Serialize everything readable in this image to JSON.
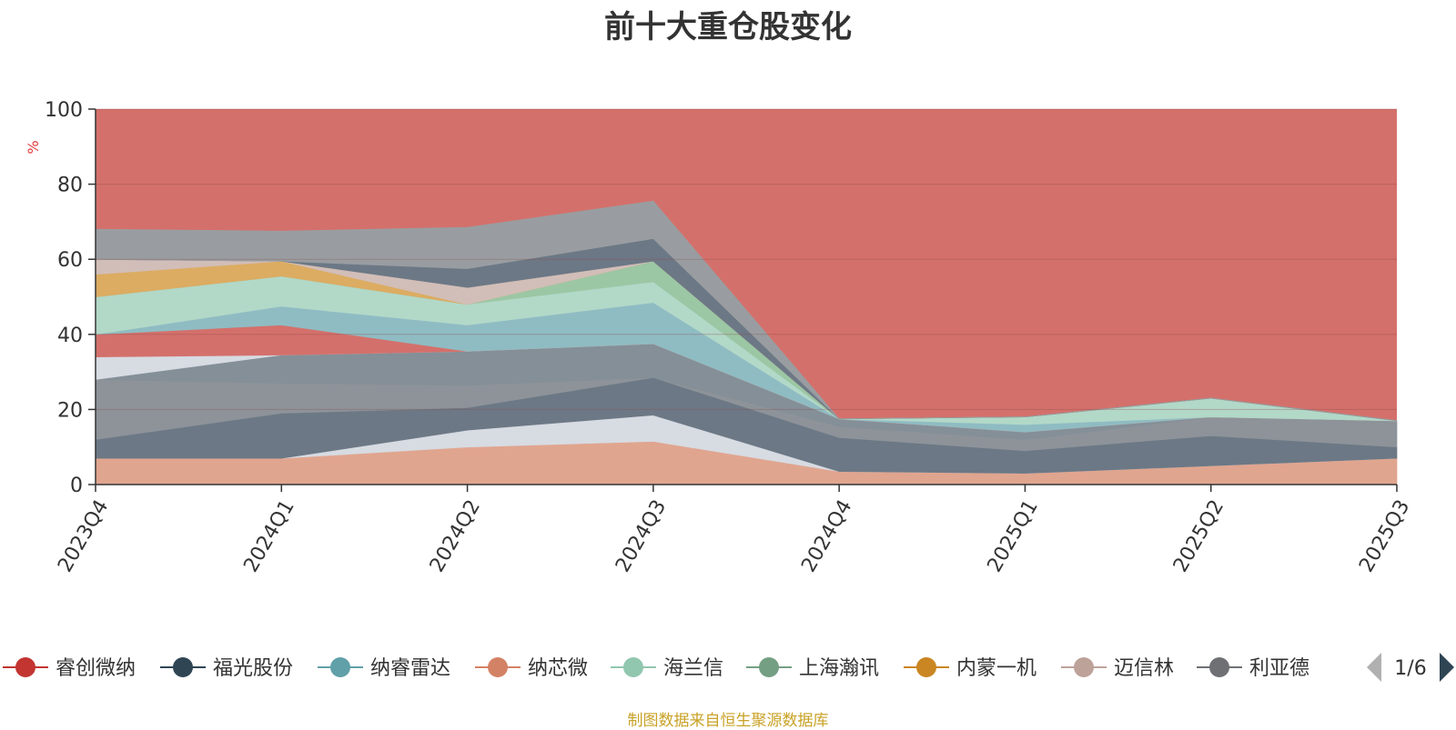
{
  "header": {
    "title": "前十大重仓股变化"
  },
  "footer": {
    "note": "制图数据来自恒生聚源数据库"
  },
  "legend": {
    "page_indicator": "1/6"
  },
  "chart_data": {
    "type": "area",
    "title": "前十大重仓股变化",
    "ylabel": "%",
    "ylim": [
      0,
      100
    ],
    "yticks": [
      0,
      20,
      40,
      60,
      80,
      100
    ],
    "grid": true,
    "legend_position": "bottom",
    "categories": [
      "2023Q4",
      "2024Q1",
      "2024Q2",
      "2024Q3",
      "2024Q4",
      "2025Q1",
      "2025Q2",
      "2025Q3"
    ],
    "background_series": {
      "name": "睿创微纳",
      "color": "#d4706b",
      "values": [
        100,
        100,
        100,
        100,
        100,
        100,
        100,
        100
      ]
    },
    "layers": [
      {
        "name": "纳芯微",
        "color": "#e0a58f",
        "values": [
          7,
          7,
          10,
          11.5,
          3.5,
          3,
          5,
          7
        ]
      },
      {
        "name": "迈信林",
        "color": "#d7dbe2",
        "values": [
          0,
          0,
          4.5,
          7,
          0,
          0,
          0,
          0
        ]
      },
      {
        "name": "福光股份",
        "color": "#6c7885",
        "values": [
          5,
          12,
          6,
          10,
          9,
          6,
          8,
          3
        ]
      },
      {
        "name": "利亚德",
        "color": "#8d9399",
        "values": [
          16,
          8,
          6,
          0,
          3,
          3,
          5,
          7
        ]
      },
      {
        "name": "纳睿雷达",
        "color": "#848f97",
        "values": [
          0,
          7.5,
          9,
          9,
          2,
          2,
          0,
          0
        ]
      },
      {
        "name": "迈信林",
        "color": "#d7dbe2",
        "values": [
          6,
          0,
          0,
          0,
          0,
          0,
          0,
          0
        ]
      },
      {
        "name": "睿创微纳",
        "color": "#d4706b",
        "values": [
          6,
          8,
          0,
          0,
          0,
          0,
          0,
          0
        ]
      },
      {
        "name": "纳睿雷达",
        "color": "#8fbcc3",
        "values": [
          0,
          5,
          7,
          11,
          0,
          2,
          0,
          0
        ]
      },
      {
        "name": "海兰信",
        "color": "#b2d8c8",
        "values": [
          10,
          8,
          5.5,
          5.5,
          0,
          2,
          5,
          0
        ]
      },
      {
        "name": "上海瀚讯",
        "color": "#9cc7a4",
        "values": [
          0,
          0,
          0,
          5.5,
          0,
          0,
          0,
          0
        ]
      },
      {
        "name": "内蒙一机",
        "color": "#dcac62",
        "values": [
          6,
          4,
          0,
          0,
          0,
          0,
          0,
          0
        ]
      },
      {
        "name": "迈信林",
        "color": "#d2beb8",
        "values": [
          4,
          0,
          4.5,
          0,
          0,
          0,
          0,
          0
        ]
      },
      {
        "name": "福光股份",
        "color": "#6c7885",
        "values": [
          0,
          0,
          5,
          6,
          0,
          0,
          0,
          0
        ]
      },
      {
        "name": "利亚德",
        "color": "#999da1",
        "values": [
          8,
          8,
          11,
          10,
          0,
          0,
          0,
          0
        ]
      }
    ],
    "series": [
      {
        "name": "睿创微纳",
        "color": "#c23531"
      },
      {
        "name": "福光股份",
        "color": "#2f4554"
      },
      {
        "name": "纳睿雷达",
        "color": "#61a0a8"
      },
      {
        "name": "纳芯微",
        "color": "#d48265"
      },
      {
        "name": "海兰信",
        "color": "#91c7ae"
      },
      {
        "name": "上海瀚讯",
        "color": "#749f83"
      },
      {
        "name": "内蒙一机",
        "color": "#ca8622"
      },
      {
        "name": "迈信林",
        "color": "#bda29a"
      },
      {
        "name": "利亚德",
        "color": "#6e7074"
      }
    ]
  }
}
